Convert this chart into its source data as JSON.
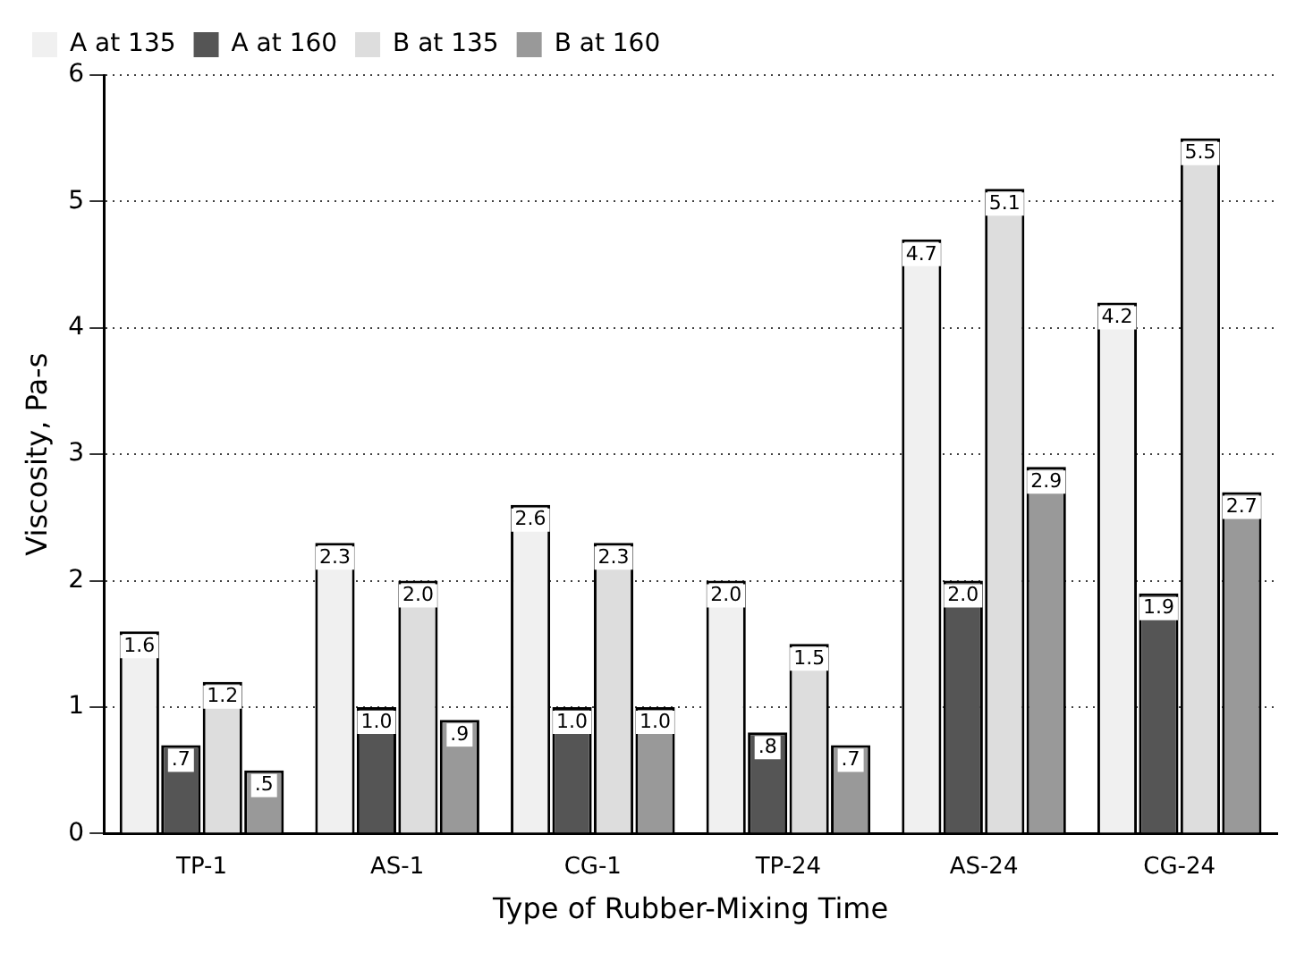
{
  "chart_data": {
    "type": "bar",
    "xlabel": "Type of Rubber-Mixing Time",
    "ylabel": "Viscosity, Pa-s",
    "categories": [
      "TP-1",
      "AS-1",
      "CG-1",
      "TP-24",
      "AS-24",
      "CG-24"
    ],
    "series": [
      {
        "name": "A at 135",
        "color": "#f0f0f0",
        "values": [
          1.6,
          2.3,
          2.6,
          2.0,
          4.7,
          4.2
        ],
        "value_labels": [
          "1.6",
          "2.3",
          "2.6",
          "2.0",
          "4.7",
          "4.2"
        ]
      },
      {
        "name": "A at 160",
        "color": "#555555",
        "values": [
          0.7,
          1.0,
          1.0,
          0.8,
          2.0,
          1.9
        ],
        "value_labels": [
          ".7",
          "1.0",
          "1.0",
          ".8",
          "2.0",
          "1.9"
        ]
      },
      {
        "name": "B at 135",
        "color": "#dddddd",
        "values": [
          1.2,
          2.0,
          2.3,
          1.5,
          5.1,
          5.5
        ],
        "value_labels": [
          "1.2",
          "2.0",
          "2.3",
          "1.5",
          "5.1",
          "5.5"
        ]
      },
      {
        "name": "B at 160",
        "color": "#999999",
        "values": [
          0.5,
          0.9,
          1.0,
          0.7,
          2.9,
          2.7
        ],
        "value_labels": [
          ".5",
          ".9",
          "1.0",
          ".7",
          "2.9",
          "2.7"
        ]
      }
    ],
    "ylim": [
      0,
      6
    ],
    "yticks": [
      0,
      1,
      2,
      3,
      4,
      5,
      6
    ],
    "grid": "y",
    "legend": "top left"
  }
}
